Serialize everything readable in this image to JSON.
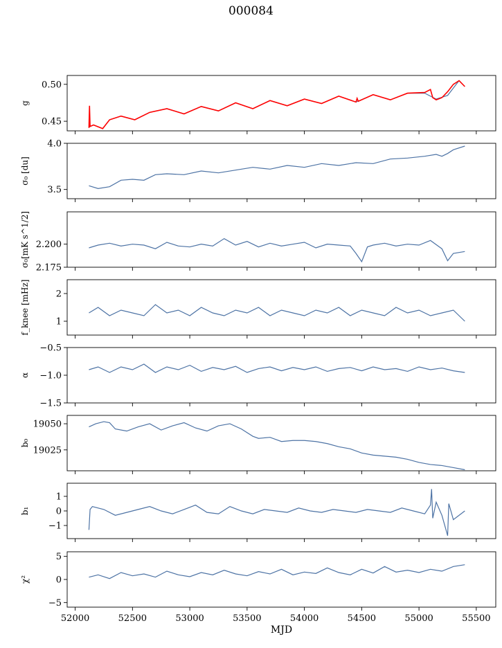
{
  "figure": {
    "title": "000084",
    "xlabel": "MJD"
  },
  "colors": {
    "series": "#4c72a4",
    "overlay": "#ff0000",
    "axis": "#000000"
  },
  "chart_data": [
    {
      "type": "line",
      "ylabel": "g",
      "xlim": [
        51930,
        55670
      ],
      "ylim": [
        0.437,
        0.512
      ],
      "yticks": [
        0.45,
        0.5
      ],
      "ytick_labels": [
        "0.45",
        "0.50"
      ],
      "series": [
        {
          "x": [
            52120,
            52160,
            52240,
            52300,
            52400,
            52520,
            52650,
            52800,
            52950,
            53100,
            53250,
            53400,
            53550,
            53700,
            53850,
            54000,
            54150,
            54300,
            54450,
            54600,
            54750,
            54900,
            55050,
            55150,
            55250,
            55350,
            55400
          ],
          "y": [
            0.442,
            0.445,
            0.44,
            0.452,
            0.457,
            0.452,
            0.462,
            0.467,
            0.46,
            0.47,
            0.464,
            0.475,
            0.467,
            0.478,
            0.471,
            0.48,
            0.474,
            0.484,
            0.476,
            0.486,
            0.479,
            0.488,
            0.488,
            0.48,
            0.485,
            0.505,
            0.497
          ]
        },
        {
          "x": [
            52120,
            52125,
            52130,
            52160,
            52240,
            52300,
            52400,
            52520,
            52650,
            52800,
            52950,
            53100,
            53250,
            53400,
            53550,
            53700,
            53850,
            54000,
            54150,
            54300,
            54450,
            54460,
            54470,
            54600,
            54750,
            54900,
            55050,
            55100,
            55120,
            55150,
            55200,
            55250,
            55300,
            55350,
            55400
          ],
          "y": [
            0.441,
            0.471,
            0.443,
            0.445,
            0.44,
            0.452,
            0.457,
            0.452,
            0.462,
            0.467,
            0.46,
            0.47,
            0.464,
            0.475,
            0.467,
            0.478,
            0.471,
            0.48,
            0.474,
            0.484,
            0.476,
            0.481,
            0.477,
            0.486,
            0.479,
            0.488,
            0.489,
            0.493,
            0.482,
            0.479,
            0.482,
            0.49,
            0.5,
            0.505,
            0.497
          ]
        }
      ]
    },
    {
      "type": "line",
      "ylabel": "σ₀ [du]",
      "xlim": [
        51930,
        55670
      ],
      "ylim": [
        3.4,
        4.0
      ],
      "yticks": [
        3.5,
        4.0
      ],
      "ytick_labels": [
        "3.5",
        "4.0"
      ],
      "series": [
        {
          "x": [
            52120,
            52200,
            52300,
            52400,
            52500,
            52600,
            52700,
            52800,
            52950,
            53100,
            53250,
            53400,
            53550,
            53700,
            53850,
            54000,
            54150,
            54300,
            54450,
            54600,
            54750,
            54900,
            55050,
            55150,
            55200,
            55250,
            55300,
            55400
          ],
          "y": [
            3.54,
            3.51,
            3.53,
            3.6,
            3.61,
            3.6,
            3.66,
            3.67,
            3.66,
            3.7,
            3.68,
            3.71,
            3.74,
            3.72,
            3.76,
            3.74,
            3.78,
            3.76,
            3.79,
            3.78,
            3.83,
            3.84,
            3.86,
            3.88,
            3.86,
            3.89,
            3.93,
            3.97
          ]
        }
      ]
    },
    {
      "type": "line",
      "ylabel": "σ₀[mK s^1/2]",
      "xlim": [
        51930,
        55670
      ],
      "ylim": [
        2.175,
        2.235
      ],
      "yticks": [
        2.175,
        2.2
      ],
      "ytick_labels": [
        "2.175",
        "2.200"
      ],
      "series": [
        {
          "x": [
            52120,
            52200,
            52300,
            52400,
            52500,
            52600,
            52700,
            52800,
            52900,
            53000,
            53100,
            53200,
            53300,
            53400,
            53500,
            53600,
            53700,
            53800,
            53900,
            54000,
            54100,
            54200,
            54300,
            54400,
            54450,
            54500,
            54550,
            54600,
            54700,
            54800,
            54900,
            55000,
            55100,
            55200,
            55250,
            55300,
            55400
          ],
          "y": [
            2.196,
            2.199,
            2.201,
            2.198,
            2.2,
            2.199,
            2.195,
            2.202,
            2.198,
            2.197,
            2.2,
            2.198,
            2.206,
            2.199,
            2.203,
            2.197,
            2.201,
            2.198,
            2.2,
            2.202,
            2.196,
            2.2,
            2.199,
            2.198,
            2.19,
            2.181,
            2.197,
            2.199,
            2.201,
            2.198,
            2.2,
            2.199,
            2.204,
            2.195,
            2.182,
            2.19,
            2.192
          ]
        }
      ]
    },
    {
      "type": "line",
      "ylabel": "f_knee [mHz]",
      "xlim": [
        51930,
        55670
      ],
      "ylim": [
        0.5,
        2.5
      ],
      "yticks": [
        1,
        2
      ],
      "ytick_labels": [
        "1",
        "2"
      ],
      "series": [
        {
          "x": [
            52120,
            52200,
            52300,
            52400,
            52500,
            52600,
            52700,
            52800,
            52900,
            53000,
            53100,
            53200,
            53300,
            53400,
            53500,
            53600,
            53700,
            53800,
            53900,
            54000,
            54100,
            54200,
            54300,
            54400,
            54500,
            54600,
            54700,
            54800,
            54900,
            55000,
            55100,
            55200,
            55300,
            55400
          ],
          "y": [
            1.3,
            1.5,
            1.2,
            1.4,
            1.3,
            1.2,
            1.6,
            1.3,
            1.4,
            1.2,
            1.5,
            1.3,
            1.2,
            1.4,
            1.3,
            1.5,
            1.2,
            1.4,
            1.3,
            1.2,
            1.4,
            1.3,
            1.5,
            1.2,
            1.4,
            1.3,
            1.2,
            1.5,
            1.3,
            1.4,
            1.2,
            1.3,
            1.4,
            1.0
          ]
        }
      ]
    },
    {
      "type": "line",
      "ylabel": "α",
      "xlim": [
        51930,
        55670
      ],
      "ylim": [
        -1.5,
        -0.5
      ],
      "yticks": [
        -1.5,
        -1.0,
        -0.5
      ],
      "ytick_labels": [
        "−1.5",
        "−1.0",
        "−0.5"
      ],
      "series": [
        {
          "x": [
            52120,
            52200,
            52300,
            52400,
            52500,
            52600,
            52700,
            52800,
            52900,
            53000,
            53100,
            53200,
            53300,
            53400,
            53500,
            53600,
            53700,
            53800,
            53900,
            54000,
            54100,
            54200,
            54300,
            54400,
            54500,
            54600,
            54700,
            54800,
            54900,
            55000,
            55100,
            55200,
            55300,
            55400
          ],
          "y": [
            -0.9,
            -0.85,
            -0.95,
            -0.85,
            -0.9,
            -0.8,
            -0.95,
            -0.85,
            -0.9,
            -0.82,
            -0.93,
            -0.86,
            -0.9,
            -0.84,
            -0.95,
            -0.88,
            -0.85,
            -0.92,
            -0.86,
            -0.9,
            -0.85,
            -0.93,
            -0.88,
            -0.86,
            -0.92,
            -0.85,
            -0.9,
            -0.88,
            -0.93,
            -0.85,
            -0.9,
            -0.87,
            -0.92,
            -0.95
          ]
        }
      ]
    },
    {
      "type": "line",
      "ylabel": "b₀",
      "xlim": [
        51930,
        55670
      ],
      "ylim": [
        19005,
        19058
      ],
      "yticks": [
        19025,
        19050
      ],
      "ytick_labels": [
        "19025",
        "19050"
      ],
      "series": [
        {
          "x": [
            52120,
            52180,
            52250,
            52300,
            52350,
            52450,
            52550,
            52650,
            52750,
            52850,
            52950,
            53050,
            53150,
            53250,
            53350,
            53450,
            53550,
            53600,
            53700,
            53800,
            53900,
            54000,
            54100,
            54200,
            54300,
            54400,
            54500,
            54600,
            54700,
            54800,
            54900,
            55000,
            55100,
            55200,
            55300,
            55400
          ],
          "y": [
            19047,
            19050,
            19052,
            19051,
            19045,
            19043,
            19047,
            19050,
            19044,
            19048,
            19051,
            19046,
            19043,
            19048,
            19050,
            19045,
            19038,
            19036,
            19037,
            19033,
            19034,
            19034,
            19033,
            19031,
            19028,
            19026,
            19022,
            19020,
            19019,
            19018,
            19016,
            19013,
            19011,
            19010,
            19008,
            19006
          ]
        }
      ]
    },
    {
      "type": "line",
      "ylabel": "b₁",
      "xlim": [
        51930,
        55670
      ],
      "ylim": [
        -1.9,
        1.9
      ],
      "yticks": [
        -1,
        0,
        1
      ],
      "ytick_labels": [
        "−1",
        "0",
        "1"
      ],
      "series": [
        {
          "x": [
            52120,
            52130,
            52150,
            52250,
            52350,
            52450,
            52550,
            52650,
            52750,
            52850,
            52950,
            53050,
            53150,
            53250,
            53350,
            53450,
            53550,
            53650,
            53750,
            53850,
            53950,
            54050,
            54150,
            54250,
            54350,
            54450,
            54550,
            54650,
            54750,
            54850,
            54950,
            55050,
            55100,
            55110,
            55120,
            55150,
            55200,
            55250,
            55260,
            55300,
            55400
          ],
          "y": [
            -1.3,
            0.1,
            0.3,
            0.1,
            -0.3,
            -0.1,
            0.1,
            0.3,
            0.0,
            -0.2,
            0.1,
            0.4,
            -0.1,
            -0.2,
            0.3,
            0.0,
            -0.2,
            0.1,
            0.0,
            -0.1,
            0.2,
            0.0,
            -0.1,
            0.1,
            0.0,
            -0.1,
            0.1,
            0.0,
            -0.1,
            0.2,
            0.0,
            -0.2,
            0.4,
            1.5,
            -0.5,
            0.6,
            -0.3,
            -1.7,
            0.5,
            -0.6,
            0.0
          ]
        }
      ]
    },
    {
      "type": "line",
      "ylabel": "χ²",
      "xlim": [
        51930,
        55670
      ],
      "ylim": [
        -6,
        6
      ],
      "yticks": [
        -5,
        0,
        5
      ],
      "ytick_labels": [
        "−5",
        "0",
        "5"
      ],
      "xticks": [
        52000,
        52500,
        53000,
        53500,
        54000,
        54500,
        55000,
        55500
      ],
      "xtick_labels": [
        "52000",
        "52500",
        "53000",
        "53500",
        "54000",
        "54500",
        "55000",
        "55500"
      ],
      "series": [
        {
          "x": [
            52120,
            52200,
            52300,
            52400,
            52500,
            52600,
            52700,
            52800,
            52900,
            53000,
            53100,
            53200,
            53300,
            53400,
            53500,
            53600,
            53700,
            53800,
            53900,
            54000,
            54100,
            54200,
            54300,
            54400,
            54500,
            54600,
            54700,
            54800,
            54900,
            55000,
            55100,
            55200,
            55300,
            55400
          ],
          "y": [
            0.5,
            1.0,
            0.2,
            1.5,
            0.8,
            1.2,
            0.5,
            1.8,
            1.0,
            0.6,
            1.5,
            1.0,
            2.0,
            1.2,
            0.8,
            1.7,
            1.2,
            2.2,
            1.0,
            1.6,
            1.3,
            2.5,
            1.5,
            1.0,
            2.2,
            1.4,
            2.8,
            1.6,
            2.0,
            1.5,
            2.2,
            1.8,
            2.8,
            3.2
          ]
        }
      ]
    }
  ]
}
